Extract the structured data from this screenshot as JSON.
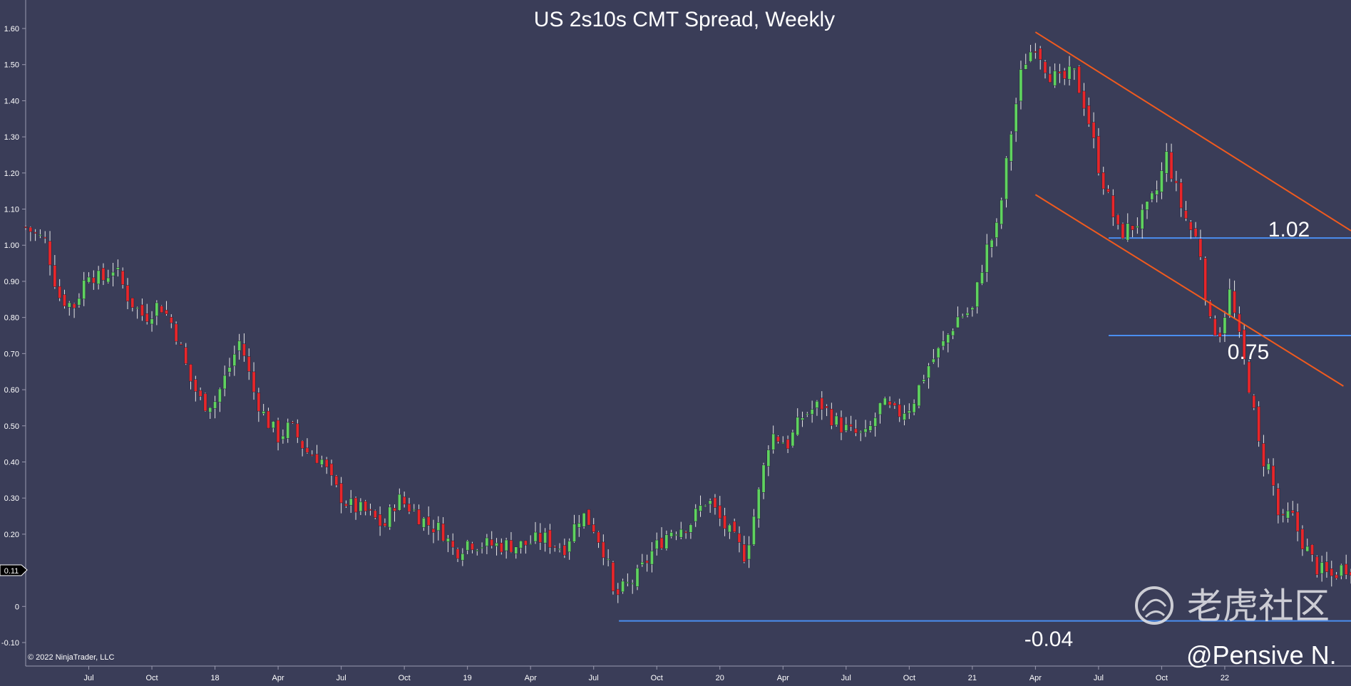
{
  "chart_data": {
    "type": "candlestick",
    "title": "US 2s10s CMT Spread, Weekly",
    "xlabel": "",
    "ylabel": "",
    "ylim": [
      -0.12,
      1.62
    ],
    "xlim": [
      2017.25,
      2022.5
    ],
    "grid": false,
    "y_ticks": [
      -0.1,
      0,
      0.1,
      0.2,
      0.3,
      0.4,
      0.5,
      0.6,
      0.7,
      0.8,
      0.9,
      1.0,
      1.1,
      1.2,
      1.3,
      1.4,
      1.5,
      1.6
    ],
    "y_tick_labels": [
      "-0.10",
      "0",
      "",
      "0.20",
      "0.30",
      "0.40",
      "0.50",
      "0.60",
      "0.70",
      "0.80",
      "0.90",
      "1.00",
      "1.10",
      "1.20",
      "1.30",
      "1.40",
      "1.50",
      "1.60"
    ],
    "x_ticks": [
      {
        "t": 2017.5,
        "label": "Jul"
      },
      {
        "t": 2017.75,
        "label": "Oct"
      },
      {
        "t": 2018.0,
        "label": "18"
      },
      {
        "t": 2018.25,
        "label": "Apr"
      },
      {
        "t": 2018.5,
        "label": "Jul"
      },
      {
        "t": 2018.75,
        "label": "Oct"
      },
      {
        "t": 2019.0,
        "label": "19"
      },
      {
        "t": 2019.25,
        "label": "Apr"
      },
      {
        "t": 2019.5,
        "label": "Jul"
      },
      {
        "t": 2019.75,
        "label": "Oct"
      },
      {
        "t": 2020.0,
        "label": "20"
      },
      {
        "t": 2020.25,
        "label": "Apr"
      },
      {
        "t": 2020.5,
        "label": "Jul"
      },
      {
        "t": 2020.75,
        "label": "Oct"
      },
      {
        "t": 2021.0,
        "label": "21"
      },
      {
        "t": 2021.25,
        "label": "Apr"
      },
      {
        "t": 2021.5,
        "label": "Jul"
      },
      {
        "t": 2021.75,
        "label": "Oct"
      },
      {
        "t": 2022.0,
        "label": "22"
      }
    ],
    "last_value_label": "0.11",
    "colors": {
      "background": "#3a3d58",
      "up": "#5fd35f",
      "down": "#e8262a",
      "wick": "#e6e6e6",
      "level_line": "#4a8ef0",
      "channel_line": "#f05a1e"
    },
    "horizontal_levels": [
      {
        "value": 1.02,
        "label": "1.02",
        "from": 2021.54,
        "to": 2022.5
      },
      {
        "value": 0.75,
        "label": "0.75",
        "from": 2021.54,
        "to": 2022.5
      },
      {
        "value": -0.04,
        "label": "-0.04",
        "from": 2019.6,
        "to": 2022.5
      }
    ],
    "channel_lines": [
      {
        "from": [
          2021.25,
          1.59
        ],
        "to": [
          2022.5,
          1.04
        ]
      },
      {
        "from": [
          2021.25,
          1.14
        ],
        "to": [
          2022.47,
          0.61
        ]
      }
    ],
    "anchors": [
      [
        2017.25,
        1.05
      ],
      [
        2017.33,
        1.01
      ],
      [
        2017.38,
        0.86
      ],
      [
        2017.44,
        0.83
      ],
      [
        2017.5,
        0.93
      ],
      [
        2017.55,
        0.9
      ],
      [
        2017.6,
        0.94
      ],
      [
        2017.66,
        0.85
      ],
      [
        2017.72,
        0.8
      ],
      [
        2017.78,
        0.84
      ],
      [
        2017.84,
        0.77
      ],
      [
        2017.9,
        0.63
      ],
      [
        2017.95,
        0.56
      ],
      [
        2018.0,
        0.57
      ],
      [
        2018.05,
        0.65
      ],
      [
        2018.1,
        0.74
      ],
      [
        2018.15,
        0.6
      ],
      [
        2018.2,
        0.52
      ],
      [
        2018.25,
        0.47
      ],
      [
        2018.3,
        0.5
      ],
      [
        2018.36,
        0.43
      ],
      [
        2018.42,
        0.41
      ],
      [
        2018.47,
        0.33
      ],
      [
        2018.53,
        0.28
      ],
      [
        2018.6,
        0.26
      ],
      [
        2018.67,
        0.22
      ],
      [
        2018.72,
        0.3
      ],
      [
        2018.78,
        0.27
      ],
      [
        2018.84,
        0.23
      ],
      [
        2018.9,
        0.21
      ],
      [
        2018.95,
        0.15
      ],
      [
        2019.0,
        0.18
      ],
      [
        2019.08,
        0.17
      ],
      [
        2019.15,
        0.17
      ],
      [
        2019.22,
        0.17
      ],
      [
        2019.3,
        0.19
      ],
      [
        2019.38,
        0.16
      ],
      [
        2019.45,
        0.26
      ],
      [
        2019.5,
        0.22
      ],
      [
        2019.55,
        0.14
      ],
      [
        2019.58,
        0.02
      ],
      [
        2019.62,
        0.05
      ],
      [
        2019.67,
        0.08
      ],
      [
        2019.73,
        0.15
      ],
      [
        2019.8,
        0.21
      ],
      [
        2019.88,
        0.23
      ],
      [
        2019.95,
        0.3
      ],
      [
        2020.0,
        0.24
      ],
      [
        2020.05,
        0.19
      ],
      [
        2020.1,
        0.14
      ],
      [
        2020.15,
        0.3
      ],
      [
        2020.2,
        0.48
      ],
      [
        2020.27,
        0.45
      ],
      [
        2020.33,
        0.53
      ],
      [
        2020.4,
        0.56
      ],
      [
        2020.46,
        0.51
      ],
      [
        2020.52,
        0.48
      ],
      [
        2020.58,
        0.47
      ],
      [
        2020.64,
        0.56
      ],
      [
        2020.7,
        0.53
      ],
      [
        2020.76,
        0.56
      ],
      [
        2020.82,
        0.66
      ],
      [
        2020.88,
        0.72
      ],
      [
        2020.94,
        0.8
      ],
      [
        2021.0,
        0.82
      ],
      [
        2021.05,
        0.98
      ],
      [
        2021.1,
        1.05
      ],
      [
        2021.15,
        1.3
      ],
      [
        2021.2,
        1.5
      ],
      [
        2021.25,
        1.56
      ],
      [
        2021.3,
        1.48
      ],
      [
        2021.35,
        1.45
      ],
      [
        2021.4,
        1.48
      ],
      [
        2021.45,
        1.38
      ],
      [
        2021.5,
        1.22
      ],
      [
        2021.55,
        1.1
      ],
      [
        2021.58,
        1.03
      ],
      [
        2021.63,
        1.05
      ],
      [
        2021.68,
        1.08
      ],
      [
        2021.73,
        1.15
      ],
      [
        2021.77,
        1.25
      ],
      [
        2021.82,
        1.12
      ],
      [
        2021.86,
        1.05
      ],
      [
        2021.9,
        1.0
      ],
      [
        2021.94,
        0.78
      ],
      [
        2021.98,
        0.76
      ],
      [
        2022.02,
        0.87
      ],
      [
        2022.06,
        0.73
      ],
      [
        2022.1,
        0.6
      ],
      [
        2022.14,
        0.42
      ],
      [
        2022.18,
        0.38
      ],
      [
        2022.22,
        0.22
      ],
      [
        2022.26,
        0.26
      ],
      [
        2022.3,
        0.19
      ],
      [
        2022.36,
        0.11
      ],
      [
        2022.42,
        0.08
      ],
      [
        2022.47,
        0.11
      ]
    ]
  },
  "annotations": {
    "level_1": "1.02",
    "level_2": "0.75",
    "level_3": "-0.04",
    "copyright": "© 2022 NinjaTrader, LLC",
    "watermark": "老虎社区",
    "handle": "@Pensive N."
  }
}
